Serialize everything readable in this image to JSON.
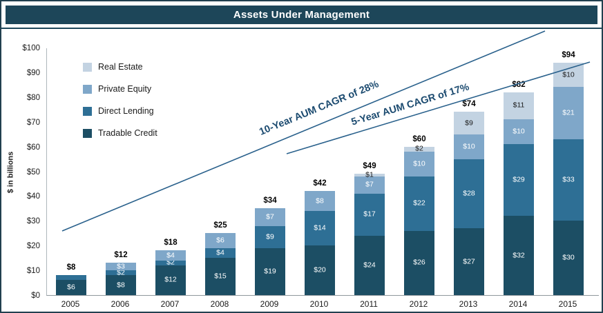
{
  "chart_data": {
    "type": "stacked-bar",
    "title": "Assets Under Management",
    "ylabel": "$ in billions",
    "ylim": [
      0,
      100
    ],
    "ytick_labels": [
      "$0",
      "$10",
      "$20",
      "$30",
      "$40",
      "$50",
      "$60",
      "$70",
      "$80",
      "$90",
      "$100"
    ],
    "categories": [
      "2005",
      "2006",
      "2007",
      "2008",
      "2009",
      "2010",
      "2011",
      "2012",
      "2013",
      "2014",
      "2015"
    ],
    "series": [
      {
        "name": "Tradable Credit",
        "color": "#1c4e64",
        "label_color": "#ffffff",
        "values": [
          6,
          8,
          12,
          15,
          19,
          20,
          24,
          26,
          27,
          32,
          30
        ],
        "labels": [
          "$6",
          "$8",
          "$12",
          "$15",
          "$19",
          "$20",
          "$24",
          "$26",
          "$27",
          "$32",
          "$30"
        ]
      },
      {
        "name": "Direct Lending",
        "color": "#2e6f95",
        "label_color": "#ffffff",
        "values": [
          2,
          2,
          2,
          4,
          9,
          14,
          17,
          22,
          28,
          29,
          33
        ],
        "labels": [
          "",
          "$2",
          "$2",
          "$4",
          "$9",
          "$14",
          "$17",
          "$22",
          "$28",
          "$29",
          "$33"
        ]
      },
      {
        "name": "Private Equity",
        "color": "#7fa7c9",
        "label_color": "#ffffff",
        "values": [
          0,
          3,
          4,
          6,
          7,
          8,
          7,
          10,
          10,
          10,
          21
        ],
        "labels": [
          "",
          "$3",
          "$4",
          "$6",
          "$7",
          "$8",
          "$7",
          "$10",
          "$10",
          "$10",
          "$21"
        ]
      },
      {
        "name": "Real Estate",
        "color": "#c3d3e2",
        "label_color": "#1a1a1a",
        "values": [
          0,
          0,
          0,
          0,
          0,
          0,
          1,
          2,
          9,
          11,
          10
        ],
        "labels": [
          "",
          "",
          "",
          "",
          "",
          "",
          "$1",
          "$2",
          "$9",
          "$11",
          "$10"
        ]
      }
    ],
    "totals": [
      "$8",
      "$12",
      "$18",
      "$25",
      "$34",
      "$42",
      "$49",
      "$60",
      "$74",
      "$82",
      "$94"
    ],
    "legend": {
      "position": "top-left",
      "items": [
        "Real Estate",
        "Private Equity",
        "Direct Lending",
        "Tradable Credit"
      ]
    },
    "annotations": [
      {
        "text": "10-Year AUM CAGR of 28%"
      },
      {
        "text": "5-Year AUM CAGR of 17%"
      }
    ],
    "grid": false
  },
  "colors": {
    "title_bg": "#1d4659",
    "frame_border": "#21404f",
    "trend_line": "#2a618c",
    "annotation_text": "#1c4b70"
  }
}
